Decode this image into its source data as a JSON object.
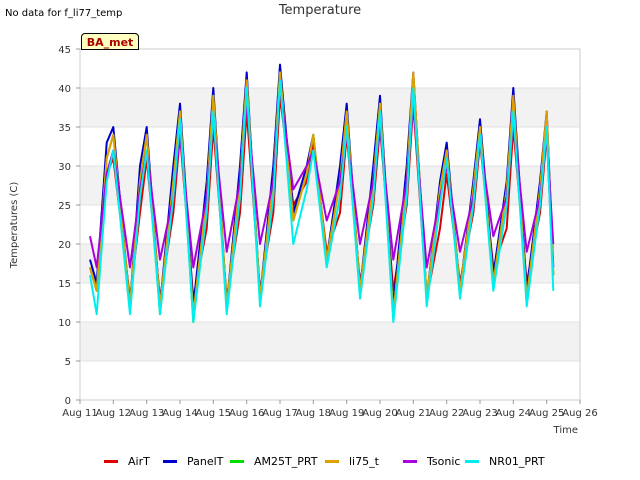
{
  "header": {
    "no_data_text": "No data for f_li77_temp",
    "title": "Temperature",
    "badge_label": "BA_met"
  },
  "chart_data": {
    "type": "line",
    "title": "Temperature",
    "xlabel": "Time",
    "ylabel": "Temperatures (C)",
    "ylim": [
      0,
      45
    ],
    "xlim": [
      11,
      26
    ],
    "x_tick_labels": [
      "Aug 11",
      "Aug 12",
      "Aug 13",
      "Aug 14",
      "Aug 15",
      "Aug 16",
      "Aug 17",
      "Aug 18",
      "Aug 19",
      "Aug 20",
      "Aug 21",
      "Aug 22",
      "Aug 23",
      "Aug 24",
      "Aug 25",
      "Aug 26"
    ],
    "y_ticks": [
      0,
      5,
      10,
      15,
      20,
      25,
      30,
      35,
      40,
      45
    ],
    "grid": "horizontal alternating bands",
    "legend_position": "bottom",
    "x_units": "day of August",
    "series": [
      {
        "name": "AirT",
        "color": "#dd0000",
        "x": [
          11.3,
          11.5,
          11.8,
          12.0,
          12.5,
          12.8,
          13.0,
          13.4,
          13.8,
          14.0,
          14.4,
          14.8,
          15.0,
          15.4,
          15.8,
          16.0,
          16.4,
          16.8,
          17.0,
          17.4,
          17.8,
          18.0,
          18.4,
          18.8,
          19.0,
          19.4,
          19.8,
          20.0,
          20.4,
          20.8,
          21.0,
          21.4,
          21.8,
          22.0,
          22.4,
          22.8,
          23.0,
          23.4,
          23.8,
          24.0,
          24.4,
          24.8,
          25.0,
          25.2
        ],
        "values": [
          17,
          14,
          29,
          31,
          13,
          24,
          31,
          13,
          24,
          34,
          13,
          22,
          35,
          13,
          24,
          37,
          14,
          24,
          39,
          25,
          28,
          33,
          19,
          24,
          34,
          15,
          25,
          35,
          14,
          25,
          38,
          13,
          22,
          29,
          15,
          24,
          33,
          17,
          22,
          35,
          15,
          24,
          34,
          16
        ]
      },
      {
        "name": "PanelT",
        "color": "#0000cc",
        "x": [
          11.3,
          11.5,
          11.8,
          12.0,
          12.5,
          12.8,
          13.0,
          13.4,
          13.8,
          14.0,
          14.4,
          14.8,
          15.0,
          15.4,
          15.8,
          16.0,
          16.4,
          16.8,
          17.0,
          17.4,
          17.8,
          18.0,
          18.4,
          18.8,
          19.0,
          19.4,
          19.8,
          20.0,
          20.4,
          20.8,
          21.0,
          21.4,
          21.8,
          22.0,
          22.4,
          22.8,
          23.0,
          23.4,
          23.8,
          24.0,
          24.4,
          24.8,
          25.0,
          25.2
        ],
        "values": [
          18,
          15,
          33,
          35,
          12,
          30,
          35,
          12,
          30,
          38,
          12,
          28,
          40,
          12,
          30,
          42,
          13,
          30,
          43,
          24,
          30,
          34,
          18,
          30,
          38,
          14,
          30,
          39,
          12,
          30,
          42,
          13,
          28,
          33,
          14,
          28,
          36,
          16,
          28,
          40,
          14,
          28,
          37,
          17
        ]
      },
      {
        "name": "AM25T_PRT",
        "color": "#00dd00",
        "x": [
          11.3,
          11.5,
          11.8,
          12.0,
          12.5,
          12.8,
          13.0,
          13.4,
          13.8,
          14.0,
          14.4,
          14.8,
          15.0,
          15.4,
          15.8,
          16.0,
          16.4,
          16.8,
          17.0,
          17.4,
          17.8,
          18.0,
          18.4,
          18.8,
          19.0,
          19.4,
          19.8,
          20.0,
          20.4,
          20.8,
          21.0,
          21.4,
          21.8,
          22.0,
          22.4,
          22.8,
          23.0,
          23.4,
          23.8,
          24.0,
          24.4,
          24.8,
          25.0,
          25.2
        ],
        "values": [
          17,
          14,
          31,
          34,
          12,
          28,
          34,
          11,
          28,
          37,
          10,
          26,
          39,
          12,
          28,
          41,
          13,
          28,
          42,
          23,
          29,
          34,
          18,
          28,
          37,
          14,
          28,
          38,
          11,
          28,
          41,
          13,
          27,
          32,
          14,
          27,
          35,
          15,
          27,
          38,
          13,
          27,
          36,
          16
        ]
      },
      {
        "name": "li75_t",
        "color": "#e0a000",
        "x": [
          11.3,
          11.5,
          11.8,
          12.0,
          12.5,
          12.8,
          13.0,
          13.4,
          13.8,
          14.0,
          14.4,
          14.8,
          15.0,
          15.4,
          15.8,
          16.0,
          16.4,
          16.8,
          17.0,
          17.4,
          17.8,
          18.0,
          18.4,
          18.8,
          19.0,
          19.4,
          19.8,
          20.0,
          20.4,
          20.8,
          21.0,
          21.4,
          21.8,
          22.0,
          22.4,
          22.8,
          23.0,
          23.4,
          23.8,
          24.0,
          24.4,
          24.8,
          25.0,
          25.2
        ],
        "values": [
          17,
          14,
          31,
          34,
          12,
          28,
          34,
          12,
          28,
          37,
          11,
          26,
          39,
          12,
          28,
          41,
          13,
          28,
          42,
          23,
          29,
          34,
          18,
          28,
          37,
          14,
          28,
          38,
          11,
          28,
          42,
          13,
          27,
          32,
          14,
          27,
          35,
          15,
          27,
          39,
          13,
          27,
          37,
          16
        ]
      },
      {
        "name": "Tsonic",
        "color": "#aa00dd",
        "x": [
          11.3,
          11.5,
          11.8,
          12.0,
          12.5,
          12.8,
          13.0,
          13.4,
          13.8,
          14.0,
          14.4,
          14.8,
          15.0,
          15.4,
          15.8,
          16.0,
          16.4,
          16.8,
          17.0,
          17.4,
          17.8,
          18.0,
          18.4,
          18.8,
          19.0,
          19.4,
          19.8,
          20.0,
          20.4,
          20.8,
          21.0,
          21.4,
          21.8,
          22.0,
          22.4,
          22.8,
          23.0,
          23.4,
          23.8,
          24.0,
          24.4,
          24.8,
          25.0,
          25.2
        ],
        "values": [
          21,
          17,
          29,
          32,
          17,
          27,
          32,
          18,
          26,
          34,
          17,
          26,
          36,
          19,
          28,
          38,
          20,
          28,
          40,
          27,
          30,
          32,
          23,
          28,
          34,
          20,
          28,
          35,
          18,
          28,
          38,
          17,
          26,
          30,
          19,
          26,
          33,
          21,
          26,
          36,
          19,
          26,
          34,
          20
        ]
      },
      {
        "name": "NR01_PRT",
        "color": "#00eeee",
        "x": [
          11.3,
          11.5,
          11.8,
          12.0,
          12.5,
          12.8,
          13.0,
          13.4,
          13.8,
          14.0,
          14.4,
          14.8,
          15.0,
          15.4,
          15.8,
          16.0,
          16.4,
          16.8,
          17.0,
          17.4,
          17.8,
          18.0,
          18.4,
          18.8,
          19.0,
          19.4,
          19.8,
          20.0,
          20.4,
          20.8,
          21.0,
          21.4,
          21.8,
          22.0,
          22.4,
          22.8,
          23.0,
          23.4,
          23.8,
          24.0,
          24.4,
          24.8,
          25.0,
          25.2
        ],
        "values": [
          16,
          11,
          28,
          32,
          11,
          26,
          32,
          11,
          26,
          36,
          10,
          24,
          37,
          11,
          26,
          40,
          12,
          26,
          41,
          20,
          27,
          32,
          17,
          26,
          35,
          13,
          26,
          37,
          10,
          26,
          40,
          12,
          25,
          31,
          13,
          25,
          34,
          14,
          25,
          37,
          12,
          25,
          35,
          14
        ]
      }
    ]
  }
}
